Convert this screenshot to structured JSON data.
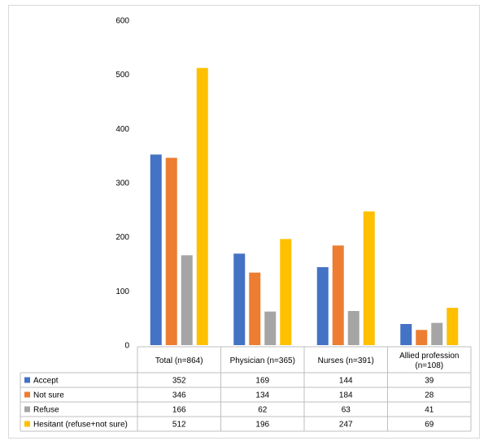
{
  "chart_data": {
    "type": "bar",
    "categories": [
      "Total  (n=864)",
      "Physician (n=365)",
      "Nurses (n=391)",
      "Allied profession (n=108)"
    ],
    "series": [
      {
        "name": "Accept",
        "values": [
          352,
          169,
          144,
          39
        ],
        "color": "#4472c4"
      },
      {
        "name": "Not sure",
        "values": [
          346,
          134,
          184,
          28
        ],
        "color": "#ed7d31"
      },
      {
        "name": "Refuse",
        "values": [
          166,
          62,
          63,
          41
        ],
        "color": "#a5a5a5"
      },
      {
        "name": "Hesitant (refuse+not sure)",
        "values": [
          512,
          196,
          247,
          69
        ],
        "color": "#ffc000"
      }
    ],
    "ylim": [
      0,
      600
    ],
    "yticks": [
      0,
      100,
      200,
      300,
      400,
      500,
      600
    ],
    "grid": false,
    "legend": "data-table"
  }
}
